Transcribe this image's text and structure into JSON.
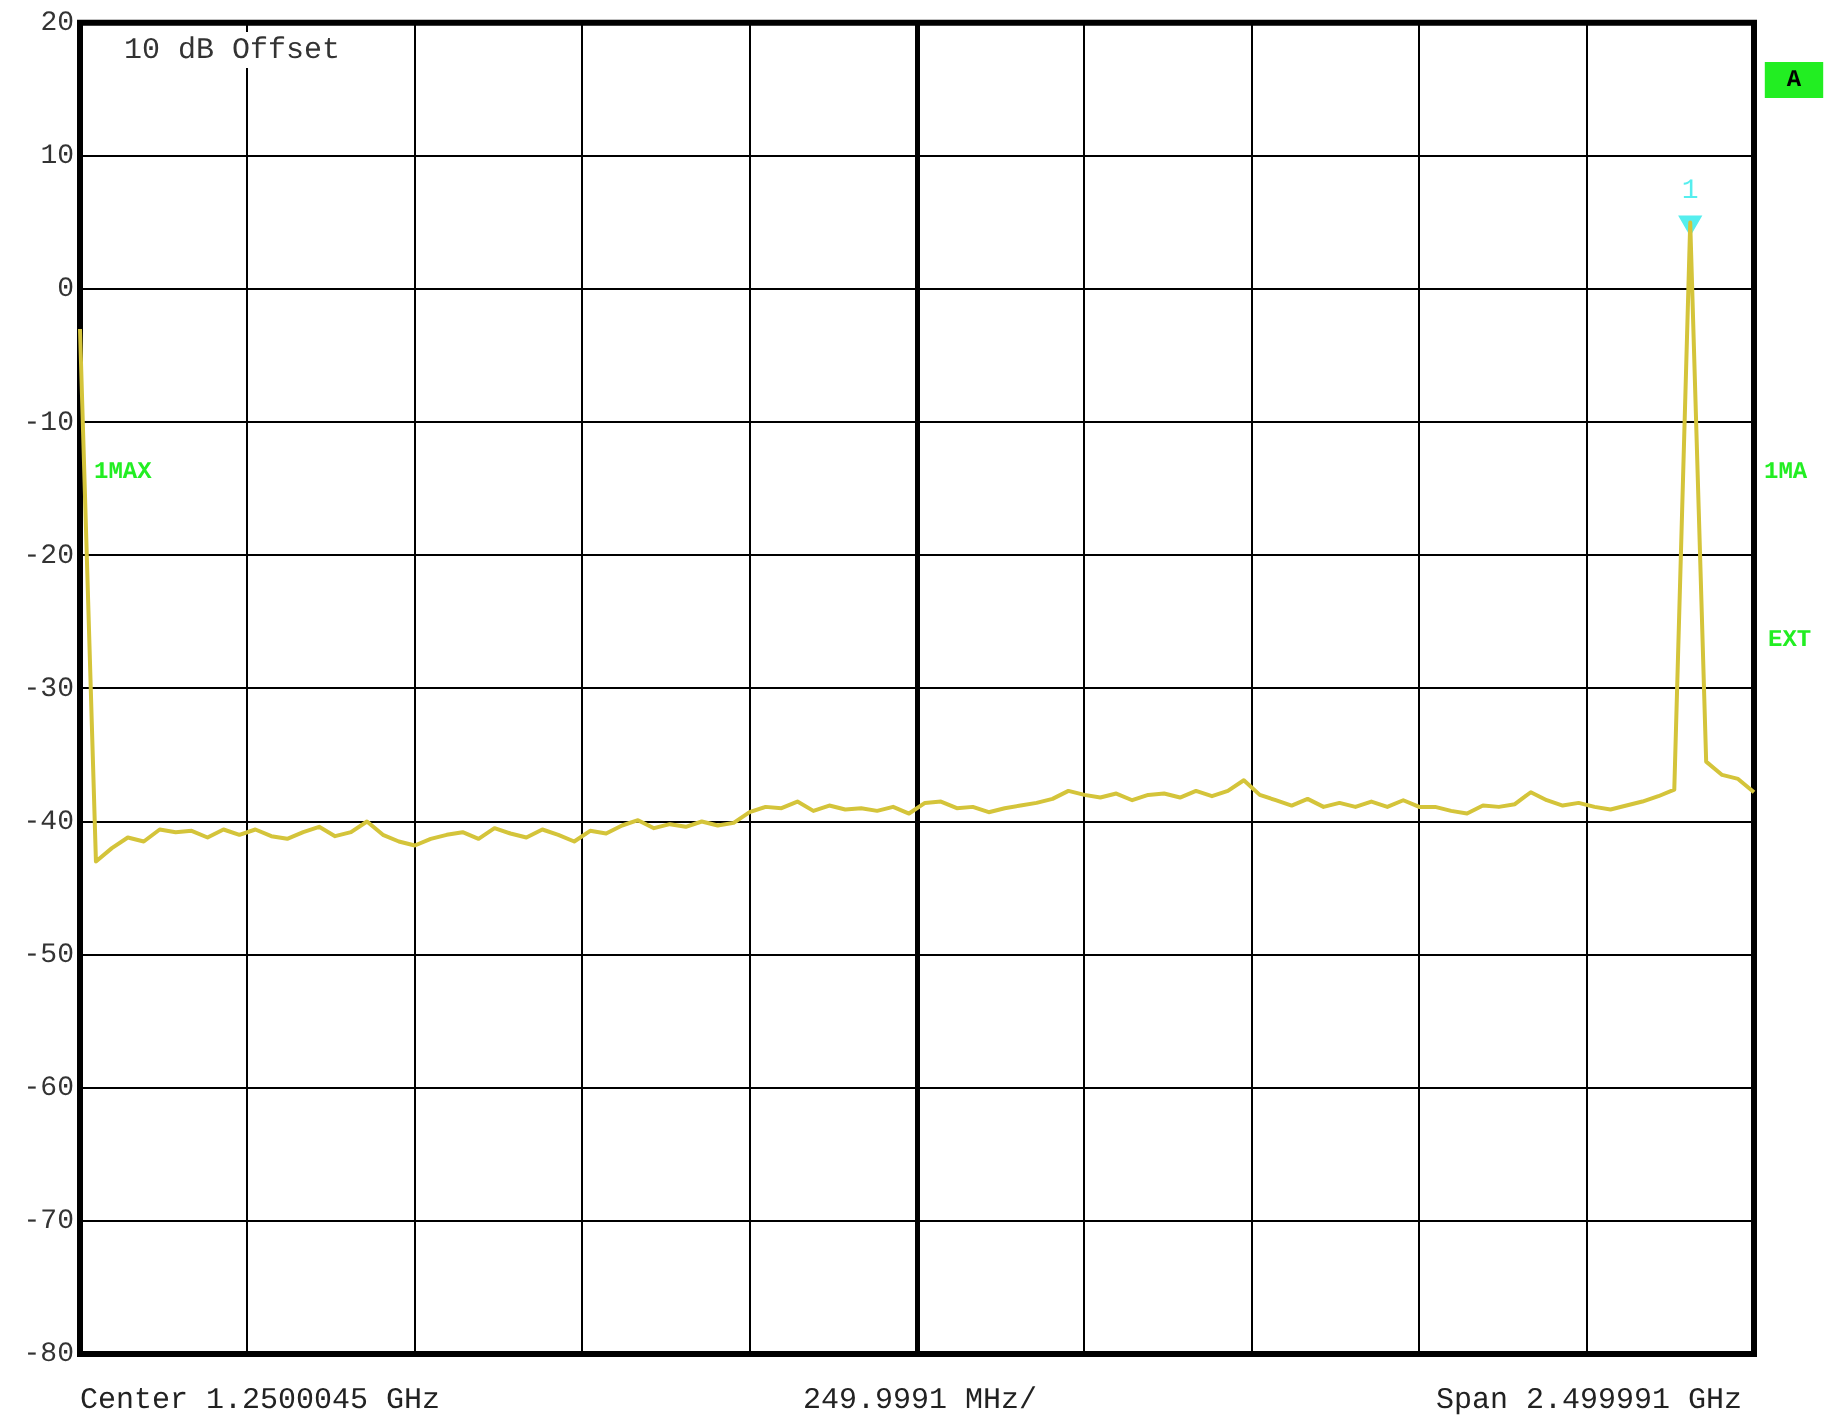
{
  "chart_data": {
    "type": "line",
    "categories": [
      null,
      null,
      null,
      null,
      null,
      null,
      null,
      null,
      null,
      null,
      null,
      null,
      null,
      null,
      null,
      null,
      null,
      null,
      null,
      null,
      null,
      null,
      null,
      null,
      null,
      null,
      null,
      null,
      null,
      null,
      null,
      null,
      null,
      null,
      null,
      null,
      null,
      null,
      null,
      null,
      null,
      null,
      null,
      null,
      null,
      null,
      null,
      null,
      null,
      null,
      null,
      null,
      null,
      null,
      null,
      null,
      null,
      null,
      null,
      null,
      null,
      null,
      null,
      null,
      null,
      null,
      null,
      null,
      null,
      null,
      null,
      null,
      null,
      null,
      null,
      null,
      null,
      null,
      null,
      null,
      null,
      null,
      null,
      null,
      null,
      null,
      null,
      null,
      null,
      null,
      null,
      null,
      null,
      null,
      null,
      null,
      null,
      null,
      null,
      null,
      null,
      null,
      null,
      null,
      null,
      null
    ],
    "series": [
      {
        "color": "#d4c43a",
        "values": [
          -3,
          -43,
          -42,
          -41.2,
          -41.5,
          -40.6,
          -40.8,
          -40.7,
          -41.2,
          -40.6,
          -41,
          -40.6,
          -41.1,
          -41.3,
          -40.8,
          -40.4,
          -41.1,
          -40.8,
          -40,
          -41,
          -41.5,
          -41.8,
          -41.3,
          -41,
          -40.8,
          -41.3,
          -40.5,
          -40.9,
          -41.2,
          -40.6,
          -41,
          -41.5,
          -40.7,
          -40.9,
          -40.3,
          -39.9,
          -40.5,
          -40.2,
          -40.4,
          -40,
          -40.3,
          -40.1,
          -39.3,
          -38.9,
          -39,
          -38.5,
          -39.2,
          -38.8,
          -39.1,
          -39,
          -39.2,
          -38.9,
          -39.4,
          -38.6,
          -38.5,
          -39,
          -38.9,
          -39.3,
          -39,
          -38.8,
          -38.6,
          -38.3,
          -37.7,
          -38,
          -38.2,
          -37.9,
          -38.4,
          -38,
          -37.9,
          -38.2,
          -37.7,
          -38.1,
          -37.7,
          -36.9,
          -38,
          -38.4,
          -38.8,
          -38.3,
          -38.9,
          -38.6,
          -38.9,
          -38.5,
          -38.9,
          -38.4,
          -38.9,
          -38.9,
          -39.2,
          -39.4,
          -38.8,
          -38.9,
          -38.7,
          -37.8,
          -38.4,
          -38.8,
          -38.6,
          -38.9,
          -39.1,
          -38.8,
          -38.5,
          -38.1,
          -37.6,
          5,
          -35.5,
          -36.5,
          -36.8,
          -37.8
        ]
      },
      {
        "type": "scatter",
        "marker": "triangle",
        "color": "#55eeee",
        "values": [
          null,
          null,
          null,
          null,
          null,
          null,
          null,
          null,
          null,
          null,
          null,
          null,
          null,
          null,
          null,
          null,
          null,
          null,
          null,
          null,
          null,
          null,
          null,
          null,
          null,
          null,
          null,
          null,
          null,
          null,
          null,
          null,
          null,
          null,
          null,
          null,
          null,
          null,
          null,
          null,
          null,
          null,
          null,
          null,
          null,
          null,
          null,
          null,
          null,
          null,
          null,
          null,
          null,
          null,
          null,
          null,
          null,
          null,
          null,
          null,
          null,
          null,
          null,
          null,
          null,
          null,
          null,
          null,
          null,
          null,
          null,
          null,
          null,
          null,
          null,
          null,
          null,
          null,
          null,
          null,
          null,
          null,
          null,
          null,
          null,
          null,
          null,
          null,
          null,
          null,
          null,
          null,
          null,
          null,
          null,
          null,
          null,
          null,
          null,
          null,
          null,
          5,
          null,
          null,
          null,
          null
        ]
      }
    ],
    "ylim": [
      -80,
      20
    ],
    "yticks": [
      -80,
      -70,
      -60,
      -50,
      -40,
      -30,
      -20,
      -10,
      0,
      10,
      20
    ],
    "grid": true,
    "legend": false,
    "marker": "none",
    "line_style": "solid",
    "tick_labels": "y",
    "annotations": [
      "10 dB Offset",
      "1MAX",
      "A",
      "1MA",
      "EXT",
      "Center 1.2500045 GHz",
      "249.9991 MHz/",
      "Span 2.499991 GHz",
      {
        "text": "1",
        "y": 5
      }
    ]
  }
}
